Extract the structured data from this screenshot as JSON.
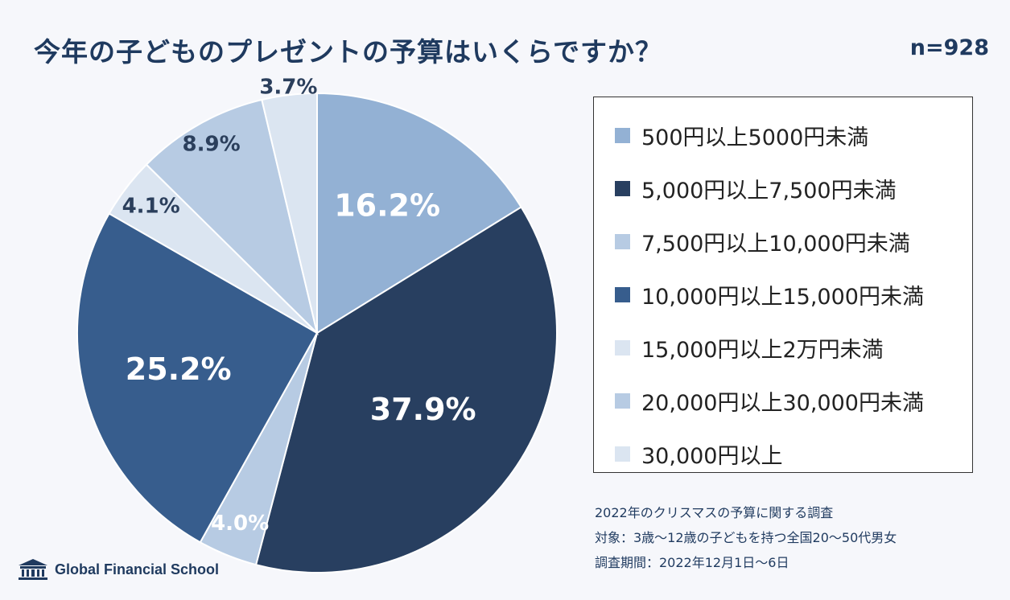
{
  "header": {
    "title": "今年の子どものプレゼントの予算はいくらですか？",
    "sample_size": "n=928"
  },
  "chart_data": {
    "type": "pie",
    "title": "今年の子どものプレゼントの予算はいくらですか？",
    "start": "top (12 o'clock), clockwise",
    "slices": [
      {
        "label": "500円以上5000円未満",
        "value": 16.2,
        "display": "16.2%",
        "color": "#93b1d4",
        "text_color": "#ffffff"
      },
      {
        "label": "5,000円以上7,500円未満",
        "value": 37.9,
        "display": "37.9%",
        "color": "#283f60",
        "text_color": "#ffffff"
      },
      {
        "label": "7,500円以上10,000円未満",
        "value": 4.0,
        "display": "4.0%",
        "color": "#b7cbe3",
        "text_color": "#ffffff"
      },
      {
        "label": "10,000円以上15,000円未満",
        "value": 25.2,
        "display": "25.2%",
        "color": "#375d8d",
        "text_color": "#ffffff"
      },
      {
        "label": "15,000円以上2万円未満",
        "value": 4.1,
        "display": "4.1%",
        "color": "#dbe5f1",
        "text_color": "#2b3f5c"
      },
      {
        "label": "20,000円以上30,000円未満",
        "value": 8.9,
        "display": "8.9%",
        "color": "#b7cbe3",
        "text_color": "#2b3f5c"
      },
      {
        "label": "30,000円以上",
        "value": 3.7,
        "display": "3.7%",
        "color": "#dbe5f1",
        "text_color": "#2b3f5c"
      }
    ]
  },
  "notes": {
    "line1": "2022年のクリスマスの予算に関する調査",
    "line2": "対象：3歳～12歳の子どもを持つ全国20～50代男女",
    "line3": "調査期間：2022年12月1日～6日"
  },
  "logo": {
    "text": "Global Financial School",
    "icon": "school-building-icon"
  }
}
